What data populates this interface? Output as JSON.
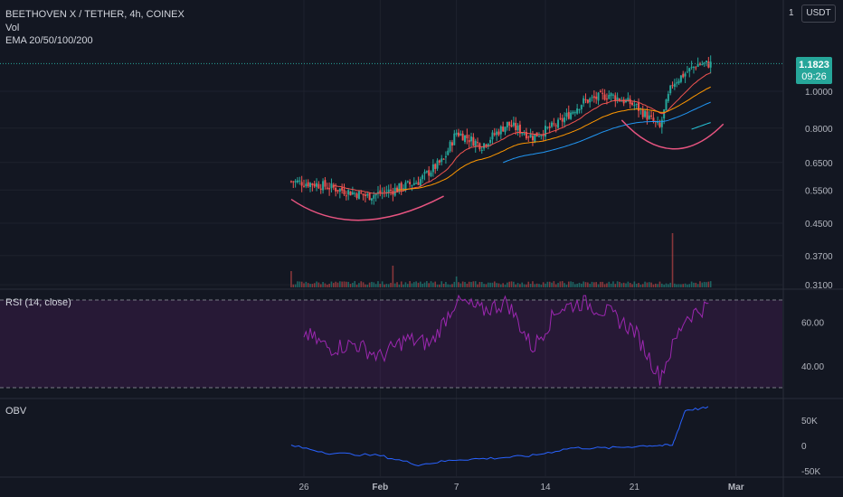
{
  "header": {
    "symbol_line": "BEETHOVEN X / TETHER, 4h, COINEX",
    "vol_label": "Vol",
    "ema_label": "EMA 20/50/100/200",
    "currency": "USDT",
    "top_tick": "1"
  },
  "price_badge": {
    "price": "1.1823",
    "countdown": "09:26"
  },
  "rsi_label": "RSI (14, close)",
  "obv_label": "OBV",
  "colors": {
    "background": "#131722",
    "up": "#26a69a",
    "down": "#ef5350",
    "ema20": "#ef5350",
    "ema50": "#ff9800",
    "ema100": "#2196f3",
    "ema200": "#26c6da",
    "annotation": "#e75480",
    "rsi": "#9c27b0",
    "obv": "#2962ff",
    "badge": "#26a69a"
  },
  "chart_data": [
    {
      "type": "candlestick",
      "panel": "price",
      "scale": "log",
      "y_ticks": [
        "1.0000",
        "0.8000",
        "0.6500",
        "0.5500",
        "0.4500",
        "0.3700",
        "0.3100"
      ],
      "x_ticks": [
        "26",
        "Feb",
        "7",
        "14",
        "21",
        "Mar"
      ],
      "last_price": 1.1823,
      "anchors": [
        {
          "date": "2022-01-25",
          "close": 0.58
        },
        {
          "date": "2022-01-27",
          "close": 0.57
        },
        {
          "date": "2022-01-29",
          "close": 0.55
        },
        {
          "date": "2022-01-31",
          "close": 0.53
        },
        {
          "date": "2022-02-02",
          "close": 0.55
        },
        {
          "date": "2022-02-04",
          "close": 0.58
        },
        {
          "date": "2022-02-06",
          "close": 0.66
        },
        {
          "date": "2022-02-07",
          "close": 0.78
        },
        {
          "date": "2022-02-09",
          "close": 0.72
        },
        {
          "date": "2022-02-11",
          "close": 0.82
        },
        {
          "date": "2022-02-13",
          "close": 0.76
        },
        {
          "date": "2022-02-15",
          "close": 0.82
        },
        {
          "date": "2022-02-17",
          "close": 0.94
        },
        {
          "date": "2022-02-19",
          "close": 0.98
        },
        {
          "date": "2022-02-21",
          "close": 0.92
        },
        {
          "date": "2022-02-23",
          "close": 0.8
        },
        {
          "date": "2022-02-24",
          "close": 1.05
        },
        {
          "date": "2022-02-26",
          "close": 1.18
        }
      ],
      "emas": [
        "EMA 20",
        "EMA 50",
        "EMA 100",
        "EMA 200"
      ],
      "annotations": [
        "rounded-bottom arc (late Jan)",
        "rounded-bottom arc (late Feb)"
      ]
    },
    {
      "type": "bar",
      "panel": "volume",
      "spikes": [
        {
          "date": "2022-01-25",
          "relative": 0.3
        },
        {
          "date": "2022-02-02",
          "relative": 0.4
        },
        {
          "date": "2022-02-07",
          "relative": 0.2
        },
        {
          "date": "2022-02-24",
          "relative": 1.0
        }
      ]
    },
    {
      "type": "line",
      "panel": "rsi",
      "title": "RSI (14, close)",
      "y_ticks": [
        "60.00",
        "40.00"
      ],
      "bands": [
        30,
        70
      ],
      "series": [
        {
          "x": [
            "2022-01-26",
            "2022-01-28",
            "2022-01-30",
            "2022-02-01",
            "2022-02-03",
            "2022-02-05",
            "2022-02-07",
            "2022-02-09",
            "2022-02-11",
            "2022-02-13",
            "2022-02-15",
            "2022-02-17",
            "2022-02-19",
            "2022-02-21",
            "2022-02-23",
            "2022-02-25",
            "2022-02-27"
          ],
          "values": [
            55,
            48,
            50,
            44,
            52,
            50,
            70,
            65,
            69,
            48,
            66,
            69,
            64,
            56,
            35,
            62,
            68
          ]
        }
      ]
    },
    {
      "type": "line",
      "panel": "obv",
      "title": "OBV",
      "y_ticks": [
        "50K",
        "0",
        "-50K"
      ],
      "series": [
        {
          "x": [
            "2022-01-25",
            "2022-01-28",
            "2022-02-01",
            "2022-02-04",
            "2022-02-07",
            "2022-02-10",
            "2022-02-13",
            "2022-02-16",
            "2022-02-19",
            "2022-02-22",
            "2022-02-24",
            "2022-02-25",
            "2022-02-27"
          ],
          "values": [
            0,
            -15000,
            -20000,
            -38000,
            -28000,
            -25000,
            -20000,
            -5000,
            -5000,
            0,
            0,
            70000,
            75000
          ]
        }
      ]
    }
  ]
}
